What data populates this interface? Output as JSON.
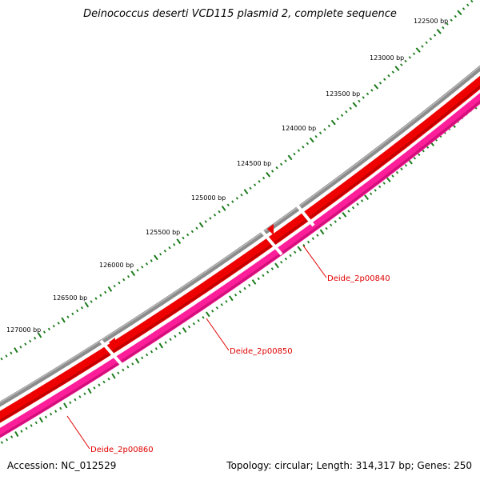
{
  "title": "Deinococcus deserti VCD115 plasmid 2, complete sequence",
  "accession": "Accession: NC_012529",
  "summary": "Topology: circular; Length: 314,317 bp; Genes: 250",
  "scale_labels": [
    "122500 bp",
    "123000 bp",
    "123500 bp",
    "124000 bp",
    "124500 bp",
    "125000 bp",
    "125500 bp",
    "126000 bp",
    "126500 bp",
    "127000 bp"
  ],
  "genes": [
    {
      "label": "Deide_2p00840",
      "strand": "reverse",
      "color": "#ff0000"
    },
    {
      "label": "Deide_2p00850",
      "strand": "forward",
      "color": "#ff2aa0"
    },
    {
      "label": "Deide_2p00860",
      "strand": "forward",
      "color": "#ff2aa0"
    }
  ],
  "colors": {
    "backbone": "#808080",
    "reverse_strand": "#ff0000",
    "forward_strand": "#ff2aa0",
    "tick": "#1a7a1a",
    "label": "#e00000"
  }
}
